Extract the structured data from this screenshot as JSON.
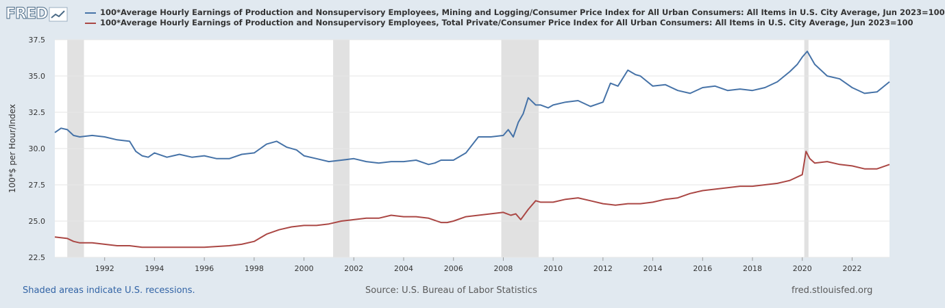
{
  "brand": {
    "logo_text": "FRED"
  },
  "chart_data": {
    "type": "line",
    "title": "",
    "ylabel": "100*$ per Hour/Index",
    "xlabel": "",
    "xlim": [
      1990.0,
      2023.5
    ],
    "ylim": [
      22.5,
      37.5
    ],
    "y_ticks": [
      22.5,
      25.0,
      27.5,
      30.0,
      32.5,
      35.0,
      37.5
    ],
    "y_tick_labels": [
      "22.5",
      "25.0",
      "27.5",
      "30.0",
      "32.5",
      "35.0",
      "37.5"
    ],
    "x_ticks": [
      1992,
      1994,
      1996,
      1998,
      2000,
      2002,
      2004,
      2006,
      2008,
      2010,
      2012,
      2014,
      2016,
      2018,
      2020,
      2022
    ],
    "x_tick_labels": [
      "1992",
      "1994",
      "1996",
      "1998",
      "2000",
      "2002",
      "2004",
      "2006",
      "2008",
      "2010",
      "2012",
      "2014",
      "2016",
      "2018",
      "2020",
      "2022"
    ],
    "grid": true,
    "legend_position": "top",
    "recessions": [
      [
        1990.5,
        1991.17
      ],
      [
        2001.17,
        2001.83
      ],
      [
        2007.92,
        2009.42
      ],
      [
        2020.08,
        2020.25
      ]
    ],
    "series": [
      {
        "name": "100*Average Hourly Earnings of Production and Nonsupervisory Employees, Mining and Logging/Consumer Price Index for All Urban Consumers: All Items in U.S. City Average, Jun 2023=100",
        "color": "#4572a7",
        "x": [
          1990.0,
          1990.25,
          1990.5,
          1990.75,
          1991.0,
          1991.5,
          1992.0,
          1992.5,
          1993.0,
          1993.25,
          1993.5,
          1993.75,
          1994.0,
          1994.5,
          1995.0,
          1995.5,
          1996.0,
          1996.5,
          1997.0,
          1997.5,
          1998.0,
          1998.5,
          1998.9,
          1999.3,
          1999.7,
          2000.0,
          2000.5,
          2001.0,
          2001.5,
          2002.0,
          2002.5,
          2003.0,
          2003.5,
          2004.0,
          2004.5,
          2005.0,
          2005.25,
          2005.5,
          2006.0,
          2006.5,
          2007.0,
          2007.5,
          2008.0,
          2008.2,
          2008.4,
          2008.6,
          2008.8,
          2009.0,
          2009.3,
          2009.5,
          2009.8,
          2010.0,
          2010.5,
          2011.0,
          2011.5,
          2012.0,
          2012.3,
          2012.6,
          2013.0,
          2013.3,
          2013.5,
          2014.0,
          2014.5,
          2015.0,
          2015.5,
          2016.0,
          2016.5,
          2017.0,
          2017.5,
          2018.0,
          2018.5,
          2019.0,
          2019.5,
          2019.8,
          2020.0,
          2020.2,
          2020.5,
          2021.0,
          2021.5,
          2022.0,
          2022.5,
          2023.0,
          2023.5
        ],
        "values": [
          31.1,
          31.4,
          31.3,
          30.9,
          30.8,
          30.9,
          30.8,
          30.6,
          30.5,
          29.8,
          29.5,
          29.4,
          29.7,
          29.4,
          29.6,
          29.4,
          29.5,
          29.3,
          29.3,
          29.6,
          29.7,
          30.3,
          30.5,
          30.1,
          29.9,
          29.5,
          29.3,
          29.1,
          29.2,
          29.3,
          29.1,
          29.0,
          29.1,
          29.1,
          29.2,
          28.9,
          29.0,
          29.2,
          29.2,
          29.7,
          30.8,
          30.8,
          30.9,
          31.3,
          30.8,
          31.8,
          32.4,
          33.5,
          33.0,
          33.0,
          32.8,
          33.0,
          33.2,
          33.3,
          32.9,
          33.2,
          34.5,
          34.3,
          35.4,
          35.1,
          35.0,
          34.3,
          34.4,
          34.0,
          33.8,
          34.2,
          34.3,
          34.0,
          34.1,
          34.0,
          34.2,
          34.6,
          35.3,
          35.8,
          36.3,
          36.7,
          35.8,
          35.0,
          34.8,
          34.2,
          33.8,
          33.9,
          34.6
        ]
      },
      {
        "name": "100*Average Hourly Earnings of Production and Nonsupervisory Employees, Total Private/Consumer Price Index for All Urban Consumers: All Items in U.S. City Average, Jun 2023=100",
        "color": "#aa4643",
        "x": [
          1990.0,
          1990.5,
          1990.75,
          1991.0,
          1991.5,
          1992.0,
          1992.5,
          1993.0,
          1993.5,
          1994.0,
          1995.0,
          1996.0,
          1997.0,
          1997.5,
          1998.0,
          1998.5,
          1999.0,
          1999.5,
          2000.0,
          2000.5,
          2001.0,
          2001.5,
          2002.0,
          2002.5,
          2003.0,
          2003.5,
          2004.0,
          2004.5,
          2005.0,
          2005.5,
          2005.75,
          2006.0,
          2006.5,
          2007.0,
          2007.5,
          2008.0,
          2008.3,
          2008.5,
          2008.7,
          2009.0,
          2009.3,
          2009.5,
          2010.0,
          2010.5,
          2011.0,
          2011.5,
          2012.0,
          2012.5,
          2013.0,
          2013.5,
          2014.0,
          2014.5,
          2015.0,
          2015.5,
          2016.0,
          2016.5,
          2017.0,
          2017.5,
          2018.0,
          2018.5,
          2019.0,
          2019.5,
          2020.0,
          2020.15,
          2020.3,
          2020.5,
          2021.0,
          2021.5,
          2022.0,
          2022.5,
          2023.0,
          2023.5
        ],
        "values": [
          23.9,
          23.8,
          23.6,
          23.5,
          23.5,
          23.4,
          23.3,
          23.3,
          23.2,
          23.2,
          23.2,
          23.2,
          23.3,
          23.4,
          23.6,
          24.1,
          24.4,
          24.6,
          24.7,
          24.7,
          24.8,
          25.0,
          25.1,
          25.2,
          25.2,
          25.4,
          25.3,
          25.3,
          25.2,
          24.9,
          24.9,
          25.0,
          25.3,
          25.4,
          25.5,
          25.6,
          25.4,
          25.5,
          25.1,
          25.8,
          26.4,
          26.3,
          26.3,
          26.5,
          26.6,
          26.4,
          26.2,
          26.1,
          26.2,
          26.2,
          26.3,
          26.5,
          26.6,
          26.9,
          27.1,
          27.2,
          27.3,
          27.4,
          27.4,
          27.5,
          27.6,
          27.8,
          28.2,
          29.8,
          29.3,
          29.0,
          29.1,
          28.9,
          28.8,
          28.6,
          28.6,
          28.9
        ]
      }
    ]
  },
  "footer": {
    "recession_note": "Shaded areas indicate U.S. recessions.",
    "source": "Source: U.S. Bureau of Labor Statistics",
    "site": "fred.stlouisfed.org"
  }
}
